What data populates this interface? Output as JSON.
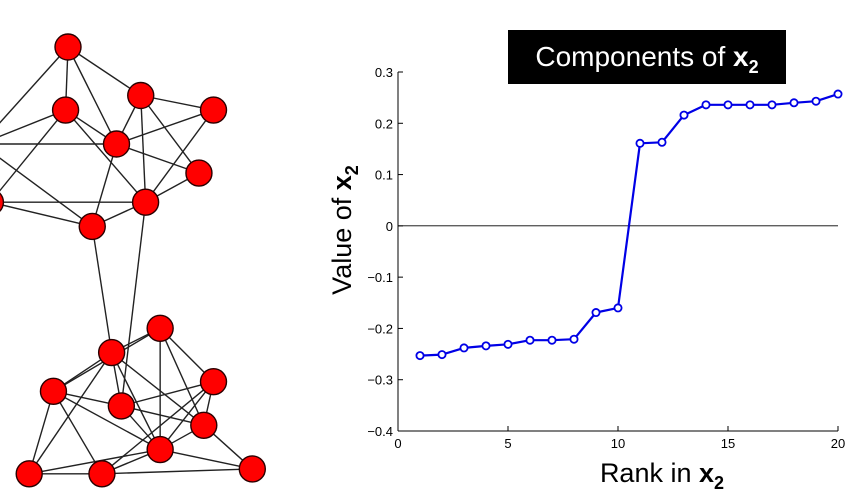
{
  "graph": {
    "nodes": [
      {
        "id": "n1",
        "x": 0.0,
        "y": 0.0
      },
      {
        "id": "n2",
        "x": -0.05,
        "y": 1.3
      },
      {
        "id": "n3",
        "x": 1.5,
        "y": 1.0
      },
      {
        "id": "n4",
        "x": 3.0,
        "y": 1.3
      },
      {
        "id": "n5",
        "x": -1.8,
        "y": 2.0
      },
      {
        "id": "n6",
        "x": 1.0,
        "y": 2.0
      },
      {
        "id": "n7",
        "x": 2.7,
        "y": 2.6
      },
      {
        "id": "n8",
        "x": -1.6,
        "y": 3.2
      },
      {
        "id": "n9",
        "x": 1.6,
        "y": 3.2
      },
      {
        "id": "n10",
        "x": 0.5,
        "y": 3.7
      },
      {
        "id": "n11",
        "x": 1.9,
        "y": 5.8
      },
      {
        "id": "n12",
        "x": 0.9,
        "y": 6.3
      },
      {
        "id": "n13",
        "x": 3.0,
        "y": 6.9
      },
      {
        "id": "n14",
        "x": -0.3,
        "y": 7.1
      },
      {
        "id": "n15",
        "x": 1.1,
        "y": 7.4
      },
      {
        "id": "n16",
        "x": 2.8,
        "y": 7.8
      },
      {
        "id": "n17",
        "x": 1.9,
        "y": 8.3
      },
      {
        "id": "n18",
        "x": -0.8,
        "y": 8.8
      },
      {
        "id": "n19",
        "x": 0.7,
        "y": 8.8
      },
      {
        "id": "n20",
        "x": 3.8,
        "y": 8.7
      }
    ],
    "edges": [
      [
        "n1",
        "n2"
      ],
      [
        "n1",
        "n3"
      ],
      [
        "n1",
        "n5"
      ],
      [
        "n1",
        "n6"
      ],
      [
        "n2",
        "n6"
      ],
      [
        "n2",
        "n5"
      ],
      [
        "n2",
        "n8"
      ],
      [
        "n2",
        "n9"
      ],
      [
        "n3",
        "n4"
      ],
      [
        "n3",
        "n6"
      ],
      [
        "n3",
        "n7"
      ],
      [
        "n3",
        "n9"
      ],
      [
        "n4",
        "n9"
      ],
      [
        "n4",
        "n6"
      ],
      [
        "n5",
        "n8"
      ],
      [
        "n5",
        "n10"
      ],
      [
        "n5",
        "n6"
      ],
      [
        "n6",
        "n10"
      ],
      [
        "n6",
        "n7"
      ],
      [
        "n7",
        "n9"
      ],
      [
        "n8",
        "n9"
      ],
      [
        "n8",
        "n10"
      ],
      [
        "n9",
        "n10"
      ],
      [
        "n9",
        "n15"
      ],
      [
        "n10",
        "n12"
      ],
      [
        "n11",
        "n12"
      ],
      [
        "n11",
        "n13"
      ],
      [
        "n11",
        "n14"
      ],
      [
        "n11",
        "n17"
      ],
      [
        "n11",
        "n16"
      ],
      [
        "n12",
        "n14"
      ],
      [
        "n12",
        "n15"
      ],
      [
        "n12",
        "n17"
      ],
      [
        "n12",
        "n18"
      ],
      [
        "n12",
        "n16"
      ],
      [
        "n13",
        "n15"
      ],
      [
        "n13",
        "n16"
      ],
      [
        "n13",
        "n17"
      ],
      [
        "n13",
        "n19"
      ],
      [
        "n14",
        "n15"
      ],
      [
        "n14",
        "n17"
      ],
      [
        "n14",
        "n18"
      ],
      [
        "n14",
        "n19"
      ],
      [
        "n15",
        "n17"
      ],
      [
        "n15",
        "n16"
      ],
      [
        "n16",
        "n17"
      ],
      [
        "n16",
        "n20"
      ],
      [
        "n17",
        "n19"
      ],
      [
        "n17",
        "n20"
      ],
      [
        "n17",
        "n18"
      ],
      [
        "n18",
        "n19"
      ],
      [
        "n19",
        "n20"
      ]
    ]
  },
  "chart_data": {
    "type": "line",
    "title_main": "Components of ",
    "title_bold": "x",
    "title_sub": "2",
    "xlabel_main": "Rank in ",
    "xlabel_bold": "x",
    "xlabel_sub": "2",
    "ylabel_main": "Value of ",
    "ylabel_bold": "x",
    "ylabel_sub": "2",
    "xlim": [
      0,
      20
    ],
    "ylim": [
      -0.4,
      0.3
    ],
    "xticks": [
      0,
      5,
      10,
      15,
      20
    ],
    "xtick_labels": [
      "0",
      "5",
      "10",
      "15",
      "20"
    ],
    "yticks": [
      0.3,
      0.2,
      0.1,
      0,
      -0.1,
      -0.2,
      -0.3,
      -0.4
    ],
    "ytick_labels": [
      "0.3",
      "0.2",
      "0.1",
      "0",
      "−0.1",
      "−0.2",
      "−0.3",
      "−0.4"
    ],
    "zero_line": true,
    "series_color": "#0000e6",
    "x": [
      1,
      2,
      3,
      4,
      5,
      6,
      7,
      8,
      9,
      10,
      11,
      12,
      13,
      14,
      15,
      16,
      17,
      18,
      19,
      20
    ],
    "y": [
      -0.253,
      -0.251,
      -0.238,
      -0.234,
      -0.231,
      -0.223,
      -0.223,
      -0.221,
      -0.169,
      -0.16,
      0.161,
      0.163,
      0.216,
      0.236,
      0.236,
      0.236,
      0.236,
      0.24,
      0.243,
      0.257
    ]
  }
}
